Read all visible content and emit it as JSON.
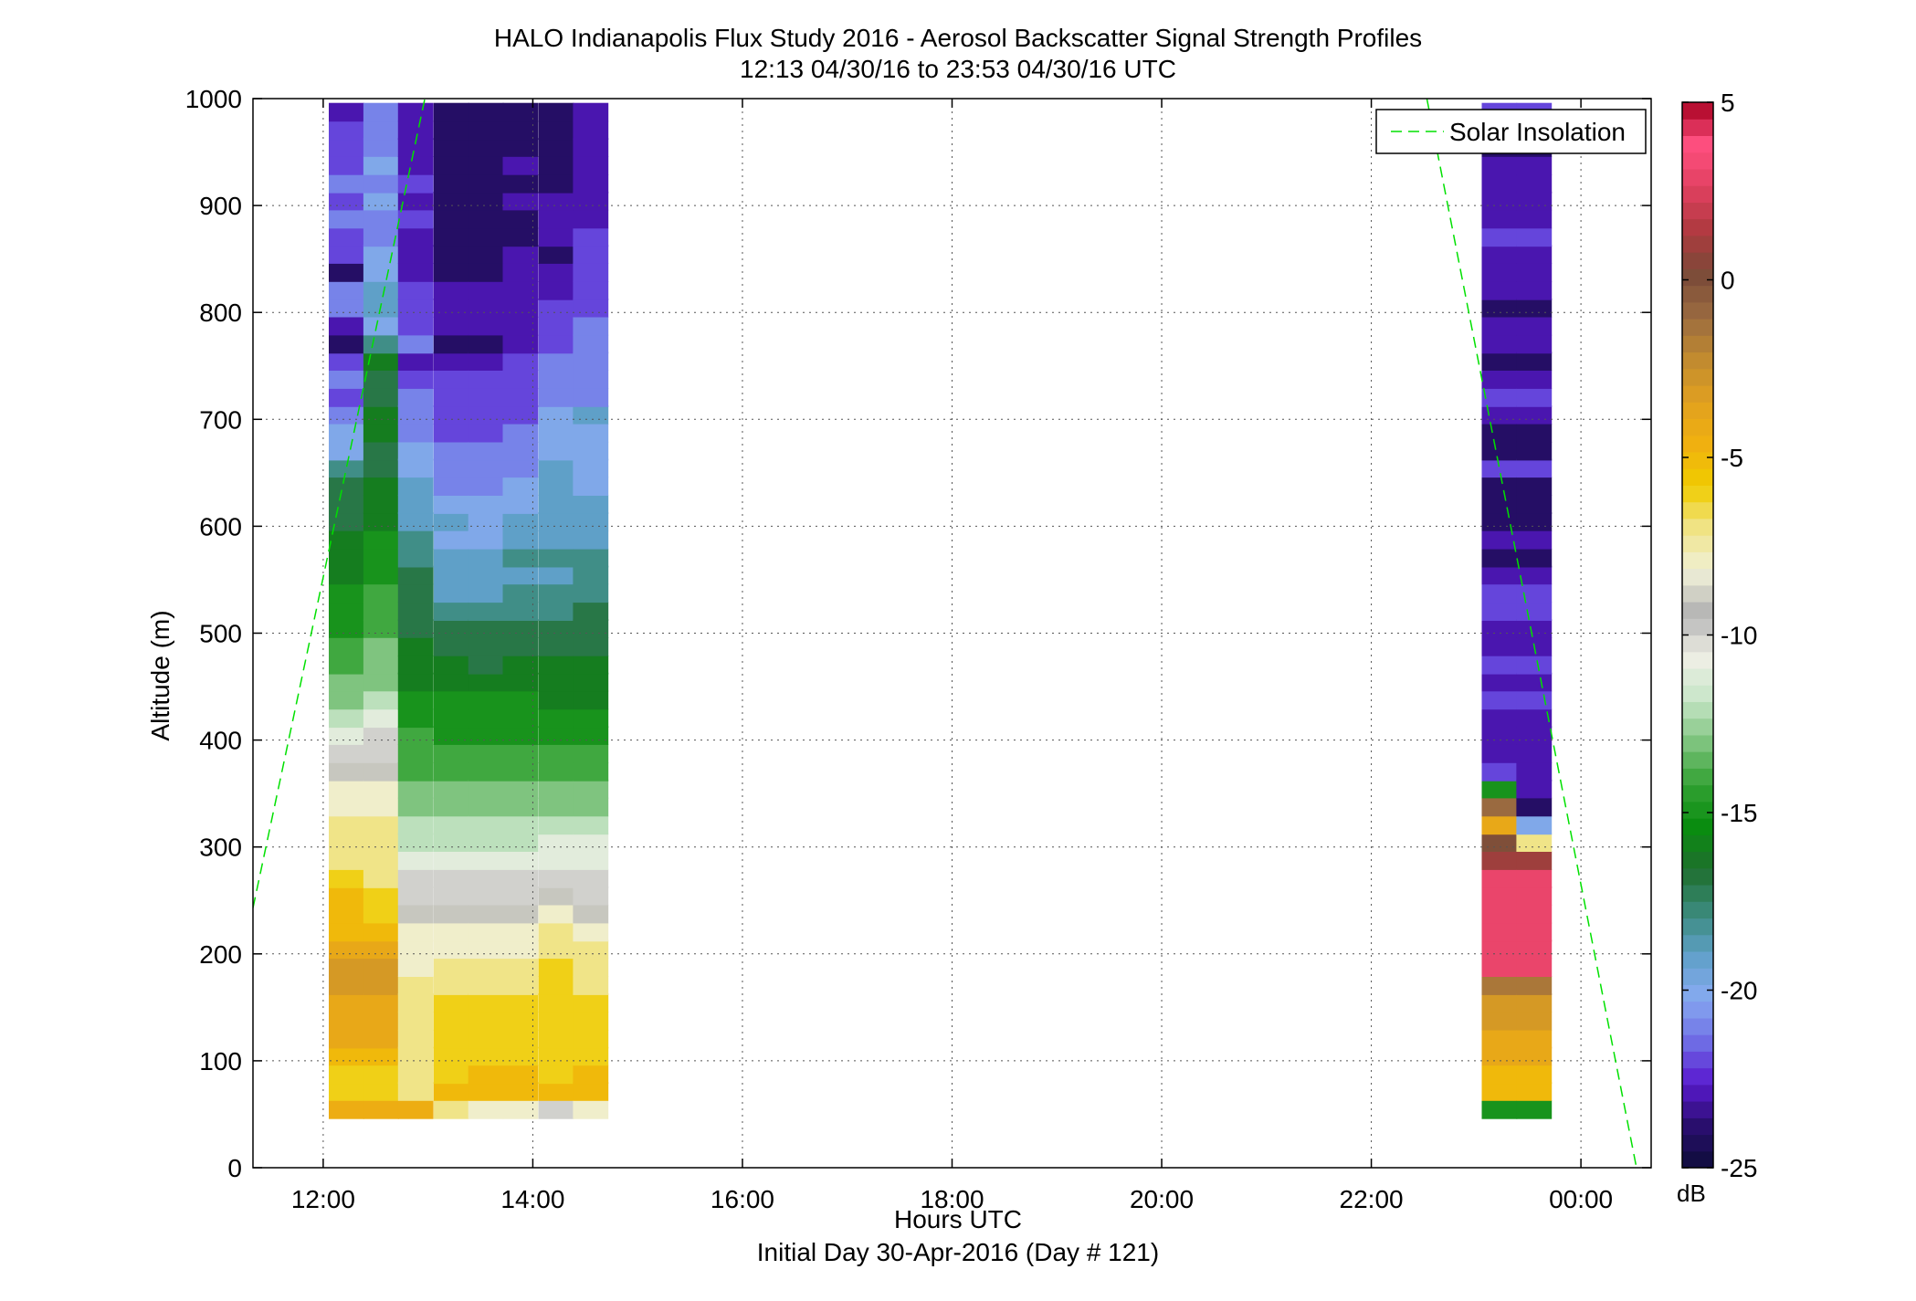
{
  "title": "HALO Indianapolis Flux Study 2016 - Aerosol Backscatter Signal Strength Profiles",
  "subtitle": "12:13 04/30/16 to 23:53 04/30/16  UTC",
  "colorbar_unit": "dB",
  "colors": {
    "stops": [
      "#0d0d3a",
      "#2a0e6e",
      "#5a1ad0",
      "#7070e6",
      "#86aaf0",
      "#5fa0c8",
      "#3a8a7a",
      "#1f6e2e",
      "#0a8c10",
      "#33a233",
      "#7fc47f",
      "#c8e6c8",
      "#efefe6",
      "#b3b3b3",
      "#f0f0d8",
      "#f0e488",
      "#f0cc00",
      "#f0b010",
      "#e0a020",
      "#c08a30",
      "#9a6a40",
      "#7a4a38",
      "#b03a40",
      "#e04060",
      "#ff5080",
      "#a80020"
    ],
    "solar_line": "#00e000"
  },
  "chart_data": {
    "type": "heatmap",
    "title": "HALO Indianapolis Flux Study 2016 - Aerosol Backscatter Signal Strength Profiles",
    "subtitle": "12:13 04/30/16 to 23:53 04/30/16  UTC",
    "xlabel": "Hours UTC",
    "xlabel_sub": "Initial Day 30-Apr-2016 (Day # 121)",
    "ylabel": "Altitude (m)",
    "xlim": [
      11.33,
      24.67
    ],
    "ylim": [
      0,
      1000
    ],
    "x_ticks": [
      12,
      14,
      16,
      18,
      20,
      22,
      24
    ],
    "x_tick_labels": [
      "12:00",
      "14:00",
      "16:00",
      "18:00",
      "20:00",
      "22:00",
      "00:00"
    ],
    "y_ticks": [
      0,
      100,
      200,
      300,
      400,
      500,
      600,
      700,
      800,
      900,
      1000
    ],
    "y_tick_labels": [
      "0",
      "100",
      "200",
      "300",
      "400",
      "500",
      "600",
      "700",
      "800",
      "900",
      "1000"
    ],
    "grid": true,
    "colorbar": {
      "range": [
        -25,
        5
      ],
      "ticks": [
        5,
        0,
        -5,
        -10,
        -15,
        -20,
        -25
      ],
      "tick_labels": [
        "5",
        "0",
        "-5",
        "-10",
        "-15",
        "-20",
        "-25"
      ],
      "unit": "dB"
    },
    "legend": {
      "placement": "top-right",
      "entries": [
        "Solar Insolation"
      ]
    },
    "solar_insolation": [
      {
        "x": [
          11.33,
          12.97
        ],
        "y": [
          243,
          1000
        ]
      },
      {
        "x": [
          22.53,
          24.53
        ],
        "y": [
          1000,
          0
        ]
      }
    ],
    "profiles": {
      "column_times": [
        12.22,
        12.55,
        12.88,
        13.22,
        13.55,
        13.88,
        14.22,
        14.55,
        23.22,
        23.55
      ],
      "column_width_h": 0.333,
      "bin_bottoms_m": [
        46,
        63,
        79,
        96,
        112,
        129,
        146,
        162,
        179,
        196,
        212,
        229,
        246,
        262,
        279,
        296,
        312,
        329,
        346,
        362,
        379,
        396,
        412,
        429,
        446,
        462,
        479,
        496,
        512,
        529,
        546,
        562,
        579,
        596,
        612,
        629,
        646,
        662,
        679,
        696,
        712,
        729,
        746,
        762,
        779,
        796,
        812,
        829,
        846,
        862,
        879,
        896,
        912,
        929,
        946,
        962,
        979
      ],
      "bin_height_m": 17,
      "dB_by_column": [
        [
          -4.4,
          -6,
          -6,
          -5,
          -4,
          -4,
          -4,
          -3,
          -3,
          -4,
          -5,
          -5,
          -5,
          -6,
          -7,
          -7,
          -7,
          -8,
          -8,
          -9,
          -10,
          -11,
          -12,
          -13,
          -13,
          -14,
          -14,
          -15,
          -15,
          -15,
          -16,
          -16,
          -16,
          -17,
          -17,
          -17,
          -18,
          -20,
          -20,
          -21,
          -22,
          -21,
          -22,
          -24,
          -23,
          -21,
          -21,
          -24,
          -22,
          -22,
          -21,
          -22,
          -21,
          -22,
          -22,
          -22,
          -23
        ],
        [
          -4.4,
          -6,
          -6,
          -5,
          -4,
          -4,
          -4,
          -3,
          -3,
          -4,
          -5,
          -6,
          -6,
          -7,
          -7,
          -7,
          -7,
          -8,
          -8,
          -9,
          -10,
          -10,
          -11,
          -12,
          -13,
          -13,
          -13,
          -14,
          -14,
          -14,
          -15,
          -15,
          -15,
          -16,
          -16,
          -16,
          -17,
          -17,
          -16,
          -16,
          -17,
          -17,
          -16,
          -18,
          -20,
          -19,
          -19,
          -20,
          -20,
          -21,
          -21,
          -20,
          -21,
          -20,
          -21,
          -21,
          -21
        ],
        [
          -4.4,
          -7,
          -7,
          -7,
          -7,
          -7,
          -7,
          -7,
          -8,
          -8,
          -8,
          -9,
          -10,
          -10,
          -11,
          -12,
          -12,
          -13,
          -13,
          -14,
          -14,
          -14,
          -15,
          -15,
          -16,
          -16,
          -16,
          -17,
          -17,
          -17,
          -17,
          -18,
          -18,
          -19,
          -19,
          -19,
          -20,
          -20,
          -21,
          -21,
          -21,
          -22,
          -23,
          -21,
          -22,
          -22,
          -22,
          -23,
          -23,
          -23,
          -22,
          -23,
          -22,
          -23,
          -23,
          -23,
          -23
        ],
        [
          -7,
          -5,
          -6,
          -6,
          -6,
          -6,
          -6,
          -7,
          -7,
          -8,
          -8,
          -9,
          -10,
          -10,
          -11,
          -12,
          -12,
          -13,
          -13,
          -14,
          -14,
          -15,
          -15,
          -15,
          -16,
          -16,
          -17,
          -17,
          -18,
          -19,
          -19,
          -19,
          -20,
          -19,
          -20,
          -21,
          -21,
          -21,
          -22,
          -22,
          -22,
          -22,
          -23,
          -24,
          -23,
          -23,
          -23,
          -24,
          -24,
          -24,
          -24,
          -24,
          -24,
          -24,
          -24,
          -24,
          -24
        ],
        [
          -8,
          -5,
          -5,
          -6,
          -6,
          -6,
          -6,
          -7,
          -7,
          -8,
          -8,
          -9,
          -10,
          -10,
          -11,
          -12,
          -12,
          -13,
          -13,
          -14,
          -14,
          -15,
          -15,
          -15,
          -16,
          -17,
          -17,
          -17,
          -18,
          -19,
          -19,
          -19,
          -20,
          -20,
          -20,
          -21,
          -21,
          -21,
          -22,
          -22,
          -22,
          -22,
          -23,
          -24,
          -23,
          -23,
          -23,
          -24,
          -24,
          -24,
          -24,
          -24,
          -24,
          -24,
          -24,
          -24,
          -24
        ],
        [
          -8,
          -5,
          -5,
          -6,
          -6,
          -6,
          -6,
          -7,
          -7,
          -8,
          -8,
          -9,
          -10,
          -10,
          -11,
          -12,
          -12,
          -13,
          -13,
          -14,
          -14,
          -15,
          -15,
          -15,
          -16,
          -16,
          -17,
          -17,
          -18,
          -18,
          -19,
          -18,
          -19,
          -19,
          -20,
          -20,
          -21,
          -21,
          -21,
          -22,
          -22,
          -22,
          -22,
          -23,
          -23,
          -23,
          -23,
          -23,
          -23,
          -24,
          -24,
          -23,
          -24,
          -23,
          -24,
          -24,
          -24
        ],
        [
          -10,
          -5,
          -6,
          -6,
          -6,
          -6,
          -6,
          -6,
          -6,
          -7,
          -7,
          -8,
          -9,
          -10,
          -11,
          -11,
          -12,
          -13,
          -13,
          -14,
          -14,
          -15,
          -15,
          -16,
          -16,
          -16,
          -17,
          -17,
          -18,
          -18,
          -19,
          -18,
          -19,
          -19,
          -19,
          -19,
          -19,
          -20,
          -20,
          -20,
          -21,
          -21,
          -21,
          -22,
          -22,
          -22,
          -23,
          -23,
          -24,
          -23,
          -23,
          -23,
          -24,
          -24,
          -24,
          -24,
          -24
        ],
        [
          -8,
          -5,
          -5,
          -6,
          -6,
          -6,
          -6,
          -7,
          -7,
          -7,
          -8,
          -9,
          -10,
          -10,
          -11,
          -11,
          -12,
          -13,
          -13,
          -14,
          -14,
          -15,
          -15,
          -16,
          -16,
          -16,
          -17,
          -17,
          -17,
          -18,
          -18,
          -18,
          -19,
          -19,
          -19,
          -20,
          -20,
          -20,
          -20,
          -19,
          -21,
          -21,
          -21,
          -21,
          -21,
          -22,
          -22,
          -22,
          -22,
          -22,
          -23,
          -23,
          -23,
          -23,
          -23,
          -23,
          -23
        ],
        [
          -15,
          -5,
          -5,
          -4,
          -4,
          -3,
          -3,
          -1.5,
          3,
          3,
          3,
          3,
          3,
          3,
          1,
          0,
          -4,
          -1,
          -15,
          -22,
          -23,
          -23,
          -23,
          -22,
          -23,
          -22,
          -23,
          -23,
          -22,
          -22,
          -23,
          -24,
          -23,
          -24,
          -24,
          -24,
          -22,
          -24,
          -24,
          -23,
          -22,
          -23,
          -24,
          -23,
          -23,
          -24,
          -23,
          -23,
          -23,
          -22,
          -23,
          -23,
          -23,
          -23,
          -24,
          -23,
          -22
        ],
        [
          -15,
          -5,
          -5,
          -4,
          -4,
          -3,
          -3,
          -1.5,
          3,
          3,
          3,
          3,
          3,
          3,
          1,
          -7,
          -20,
          -24,
          -23,
          -23,
          -23,
          -23,
          -23,
          -22,
          -23,
          -22,
          -23,
          -23,
          -22,
          -22,
          -23,
          -24,
          -23,
          -24,
          -24,
          -24,
          -22,
          -24,
          -24,
          -23,
          -22,
          -23,
          -24,
          -23,
          -23,
          -24,
          -23,
          -23,
          -23,
          -22,
          -23,
          -23,
          -23,
          -23,
          -24,
          -23,
          -22
        ]
      ]
    }
  }
}
